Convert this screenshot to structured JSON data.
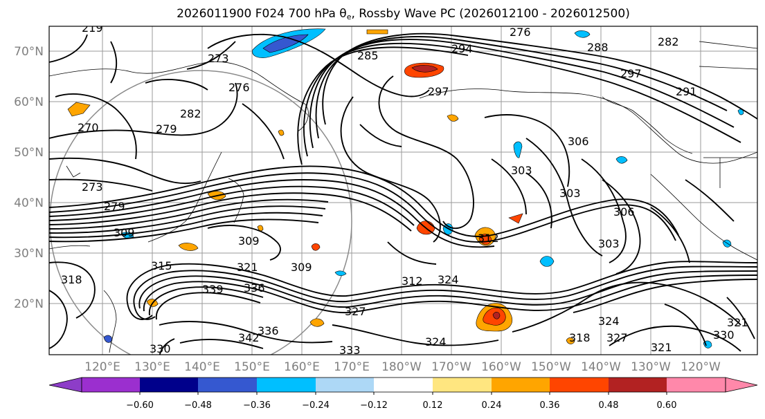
{
  "title": {
    "prefix": "2026011900 F024 700 hPa ",
    "theta": "θ",
    "theta_sub": "e",
    "suffix": ", Rossby Wave PC (2026012100 - 2026012500)"
  },
  "map": {
    "latitudes": [
      "70°N",
      "60°N",
      "50°N",
      "40°N",
      "30°N",
      "20°N"
    ],
    "longitudes": [
      "120°E",
      "130°E",
      "140°E",
      "150°E",
      "160°E",
      "170°E",
      "180°W",
      "170°W",
      "160°W",
      "150°W",
      "140°W",
      "130°W",
      "120°W"
    ],
    "contour_labels": [
      "219",
      "276",
      "288",
      "282",
      "273",
      "294",
      "285",
      "276",
      "297",
      "291",
      "282",
      "297",
      "279",
      "270",
      "306",
      "303",
      "273",
      "279",
      "309",
      "303",
      "306",
      "309",
      "303",
      "312",
      "318",
      "321",
      "309",
      "339",
      "336",
      "312",
      "324",
      "327",
      "318",
      "324",
      "327",
      "321",
      "330",
      "321",
      "336",
      "324",
      "333",
      "342",
      "330",
      "315"
    ]
  },
  "colorbar": {
    "colors": [
      "#8d3dc8",
      "#9b2fcf",
      "#00008b",
      "#3558d0",
      "#00bfff",
      "#add8f6",
      "#ffffff",
      "#ffe680",
      "#ffa500",
      "#ff4500",
      "#b22222",
      "#ff88aa",
      "#ff88aa"
    ],
    "ticks": [
      "−0.60",
      "−0.48",
      "−0.36",
      "−0.24",
      "−0.12",
      "0.12",
      "0.24",
      "0.36",
      "0.48",
      "0.60"
    ],
    "extend": "both"
  }
}
